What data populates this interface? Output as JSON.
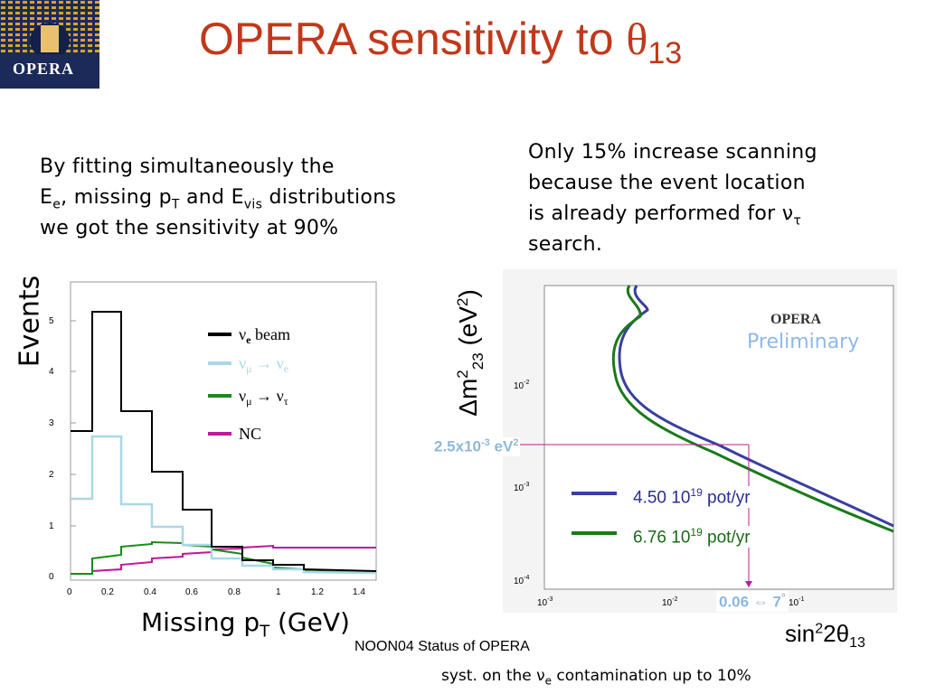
{
  "slide": {
    "title": "OPERA sensitivity to ",
    "title_symbol": "θ",
    "title_sub": "13",
    "logo_text": "OPERA",
    "left_text": {
      "line1": "By fitting simultaneously the",
      "line2_a": "E",
      "line2_a_sub": "e",
      "line2_b": ", missing p",
      "line2_b_sub": "T",
      "line2_c": " and E",
      "line2_c_sub": "vis",
      "line2_d": " distributions",
      "line3": "we got the sensitivity at 90%"
    },
    "right_text": {
      "line1": "Only 15% increase scanning",
      "line2": "because the event location",
      "line3": "is already performed for ν",
      "line3_sub": "τ",
      "line4": "search."
    },
    "footer": "NOON04 Status of OPERA",
    "syst_a": "syst. on the ν",
    "syst_sub": "e",
    "syst_b": " contamination up to 10%"
  },
  "histogram": {
    "ylabel": "Events",
    "xlabel_a": "Missing p",
    "xlabel_sub": "T",
    "xlabel_b": " (GeV)",
    "legend": [
      {
        "label": "νe beam",
        "color": "#000000"
      },
      {
        "label": "νμ → νe",
        "color": "#a8d8e8"
      },
      {
        "label": "νμ → ντ",
        "color": "#1a8a1a"
      },
      {
        "label": "NC",
        "color": "#c0189a"
      }
    ],
    "x_ticks": [
      "0",
      "0.2",
      "0.4",
      "0.6",
      "0.8",
      "1",
      "1.2",
      "1.4"
    ],
    "y_ticks": [
      "0",
      "1",
      "2",
      "3",
      "4",
      "5"
    ]
  },
  "sensitivity": {
    "ylabel_a": "Δm",
    "ylabel_sup": "2",
    "ylabel_sub": "23",
    "ylabel_b": " (eV",
    "ylabel_sup2": "2",
    "ylabel_c": ")",
    "xlabel_a": "sin",
    "xlabel_sup": "2",
    "xlabel_b": "2θ",
    "xlabel_sub": "13",
    "opera_label": "OPERA",
    "preliminary": "Preliminary",
    "marker_y_label": "2.5x10",
    "marker_y_sup": "-3",
    "marker_y_unit": " eV",
    "marker_y_sup2": "2",
    "marker_x_label": "0.06 ⇔ 7",
    "marker_x_deg": "°",
    "legend": [
      {
        "a": "4.50 10",
        "sup": "19",
        "b": " pot/yr",
        "color": "#3a3ea0"
      },
      {
        "a": "6.76 10",
        "sup": "19",
        "b": " pot/yr",
        "color": "#1a7a1a"
      }
    ],
    "x_ticks": [
      "10-3",
      "10-2",
      "10-1"
    ],
    "y_ticks": [
      "10-2",
      "10-3",
      "10-4"
    ]
  }
}
